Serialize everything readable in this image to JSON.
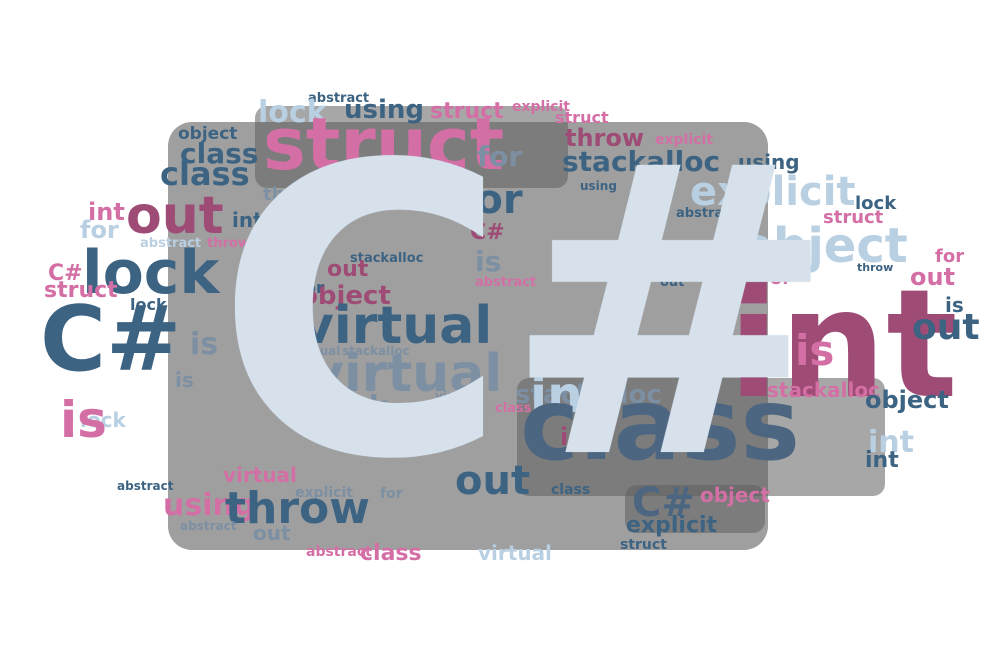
{
  "colors": {
    "navy": "#3d6383",
    "pink": "#d46fa6",
    "magenta": "#9e4b75",
    "lightblue": "#b9cfe2",
    "gray": "#7c8fa3",
    "slate": "#4c6681",
    "paleblue": "#d6e1ec"
  },
  "logo_text": "C#",
  "words": [
    {
      "text": "abstract"
    },
    {
      "text": "using"
    },
    {
      "text": "struct"
    },
    {
      "text": "explicit"
    },
    {
      "text": "struct"
    },
    {
      "text": "lock"
    },
    {
      "text": "struct"
    },
    {
      "text": "throw"
    },
    {
      "text": "explicit"
    },
    {
      "text": "object"
    },
    {
      "text": "class"
    },
    {
      "text": "for"
    },
    {
      "text": "stackalloc"
    },
    {
      "text": "using"
    },
    {
      "text": "class"
    },
    {
      "text": "explicit"
    },
    {
      "text": "using"
    },
    {
      "text": "int"
    },
    {
      "text": "out"
    },
    {
      "text": "int"
    },
    {
      "text": "for"
    },
    {
      "text": "lock"
    },
    {
      "text": "abstract"
    },
    {
      "text": "struct"
    },
    {
      "text": "for"
    },
    {
      "text": "throw"
    },
    {
      "text": "using"
    },
    {
      "text": "C#"
    },
    {
      "text": "object"
    },
    {
      "text": "C#"
    },
    {
      "text": "for"
    },
    {
      "text": "lock"
    },
    {
      "text": "is"
    },
    {
      "text": "C#"
    },
    {
      "text": "abstract"
    },
    {
      "text": "throw"
    },
    {
      "text": "stackalloc"
    },
    {
      "text": "out"
    },
    {
      "text": "for"
    },
    {
      "text": "struct"
    },
    {
      "text": "throw"
    },
    {
      "text": "object"
    },
    {
      "text": "out"
    },
    {
      "text": "abstract"
    },
    {
      "text": "out"
    },
    {
      "text": "for"
    },
    {
      "text": "int"
    },
    {
      "text": "lock"
    },
    {
      "text": "is"
    },
    {
      "text": "C#"
    },
    {
      "text": "virtual"
    },
    {
      "text": "stackalloc"
    },
    {
      "text": "virtual"
    },
    {
      "text": "explicit"
    },
    {
      "text": "is"
    },
    {
      "text": "stackalloc"
    },
    {
      "text": "out"
    },
    {
      "text": "virtual"
    },
    {
      "text": "stackalloc"
    },
    {
      "text": "is"
    },
    {
      "text": "lock"
    },
    {
      "text": "virtual"
    },
    {
      "text": "object"
    },
    {
      "text": "is"
    },
    {
      "text": "struct"
    },
    {
      "text": "class"
    },
    {
      "text": "int"
    },
    {
      "text": "lock"
    },
    {
      "text": "is"
    },
    {
      "text": "int"
    },
    {
      "text": "class"
    },
    {
      "text": "int"
    },
    {
      "text": "int"
    },
    {
      "text": "out"
    },
    {
      "text": "abstract"
    },
    {
      "text": "virtual"
    },
    {
      "text": "object"
    },
    {
      "text": "explicit"
    },
    {
      "text": "for"
    },
    {
      "text": "using"
    },
    {
      "text": "C#"
    },
    {
      "text": "throw"
    },
    {
      "text": "explicit"
    },
    {
      "text": "abstract"
    },
    {
      "text": "out"
    },
    {
      "text": "class"
    },
    {
      "text": "struct"
    },
    {
      "text": "abstract"
    },
    {
      "text": "class"
    },
    {
      "text": "virtual"
    }
  ]
}
